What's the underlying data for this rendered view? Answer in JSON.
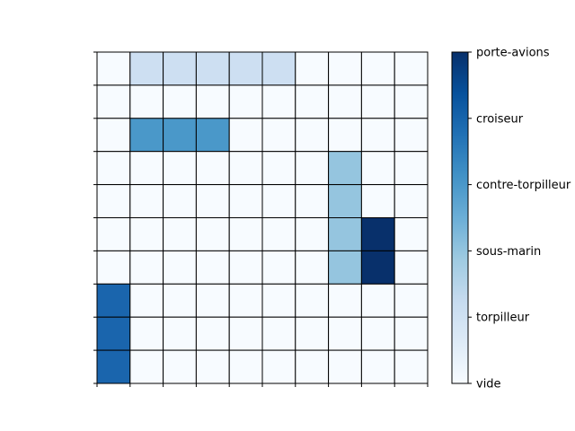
{
  "game": {
    "type": "battleship-board",
    "grid_rows": 10,
    "grid_cols": 10,
    "cells": [
      [
        0,
        1,
        1,
        1,
        1,
        1,
        0,
        0,
        0,
        0
      ],
      [
        0,
        0,
        0,
        0,
        0,
        0,
        0,
        0,
        0,
        0
      ],
      [
        0,
        3,
        3,
        3,
        0,
        0,
        0,
        0,
        0,
        0
      ],
      [
        0,
        0,
        0,
        0,
        0,
        0,
        0,
        2,
        0,
        0
      ],
      [
        0,
        0,
        0,
        0,
        0,
        0,
        0,
        2,
        0,
        0
      ],
      [
        0,
        0,
        0,
        0,
        0,
        0,
        0,
        2,
        5,
        0
      ],
      [
        0,
        0,
        0,
        0,
        0,
        0,
        0,
        2,
        5,
        0
      ],
      [
        4,
        0,
        0,
        0,
        0,
        0,
        0,
        0,
        0,
        0
      ],
      [
        4,
        0,
        0,
        0,
        0,
        0,
        0,
        0,
        0,
        0
      ],
      [
        4,
        0,
        0,
        0,
        0,
        0,
        0,
        0,
        0,
        0
      ]
    ],
    "cell_colors": {
      "0": "#f7fbff",
      "1": "#cddff2",
      "2": "#95c5df",
      "3": "#4a98c9",
      "4": "#1a65ad",
      "5": "#08306b"
    },
    "grid_line_color": "#000000"
  },
  "colorbar": {
    "colormap": "Blues",
    "gradient": [
      "#f7fbff",
      "#deebf7",
      "#c6dbef",
      "#9ecae1",
      "#6baed6",
      "#4292c6",
      "#2171b5",
      "#08519c",
      "#08306b"
    ],
    "ticks": [
      "vide",
      "torpilleur",
      "sous-marin",
      "contre-torpilleur",
      "croiseur",
      "porte-avions"
    ]
  }
}
